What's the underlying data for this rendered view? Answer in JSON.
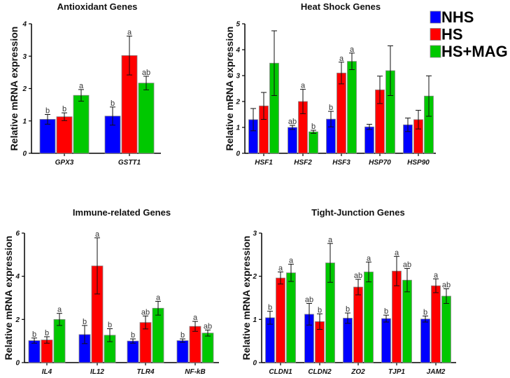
{
  "legend": [
    {
      "name": "NHS",
      "color": "#0000ff"
    },
    {
      "name": "HS",
      "color": "#ff0000"
    },
    {
      "name": "HS+MAG",
      "color": "#00c800"
    }
  ],
  "chart_data": [
    {
      "type": "bar",
      "title": "Antioxidant Genes",
      "ylabel": "Relative mRNA expression",
      "ylim": [
        0,
        4
      ],
      "yticks": [
        "0",
        "1",
        "2",
        "3",
        "4"
      ],
      "categories": [
        "GPX3",
        "GSTT1"
      ],
      "series": [
        {
          "name": "NHS",
          "values": [
            1.05,
            1.15
          ],
          "errors": [
            0.15,
            0.28
          ],
          "letters": [
            "b",
            "b"
          ]
        },
        {
          "name": "HS",
          "values": [
            1.13,
            3.02
          ],
          "errors": [
            0.12,
            0.6
          ],
          "letters": [
            "b",
            "a"
          ]
        },
        {
          "name": "HS+MAG",
          "values": [
            1.79,
            2.17
          ],
          "errors": [
            0.18,
            0.21
          ],
          "letters": [
            "a",
            "ab"
          ]
        }
      ]
    },
    {
      "type": "bar",
      "title": "Heat Shock Genes",
      "ylabel": "Relative mRNA expression",
      "ylim": [
        0,
        5
      ],
      "yticks": [
        "0",
        "1",
        "2",
        "3",
        "4",
        "5"
      ],
      "categories": [
        "HSF1",
        "HSF2",
        "HSF3",
        "HSP70",
        "HSP90"
      ],
      "series": [
        {
          "name": "NHS",
          "values": [
            1.3,
            1.0,
            1.32,
            1.02,
            1.1
          ],
          "errors": [
            0.43,
            0.08,
            0.3,
            0.1,
            0.26
          ],
          "letters": [
            "",
            "ab",
            "b",
            "",
            ""
          ]
        },
        {
          "name": "HS",
          "values": [
            1.83,
            2.0,
            3.1,
            2.45,
            1.3
          ],
          "errors": [
            0.52,
            0.47,
            0.42,
            0.53,
            0.36
          ],
          "letters": [
            "",
            "a",
            "a",
            "",
            ""
          ]
        },
        {
          "name": "HS+MAG",
          "values": [
            3.48,
            0.83,
            3.55,
            3.19,
            2.21
          ],
          "errors": [
            1.25,
            0.06,
            0.32,
            0.96,
            0.78
          ],
          "letters": [
            "",
            "b",
            "a",
            "",
            ""
          ]
        }
      ]
    },
    {
      "type": "bar",
      "title": "Immune-related Genes",
      "ylabel": "Relative mRNA expression",
      "ylim": [
        0,
        6
      ],
      "yticks": [
        "0",
        "2",
        "4",
        "6"
      ],
      "categories": [
        "IL4",
        "IL12",
        "TLR4",
        "NF-kB"
      ],
      "series": [
        {
          "name": "NHS",
          "values": [
            1.02,
            1.3,
            1.0,
            1.02
          ],
          "errors": [
            0.12,
            0.42,
            0.1,
            0.08
          ],
          "letters": [
            "b",
            "b",
            "b",
            "b"
          ]
        },
        {
          "name": "HS",
          "values": [
            1.05,
            4.48,
            1.86,
            1.68
          ],
          "errors": [
            0.15,
            1.3,
            0.3,
            0.23
          ],
          "letters": [
            "b",
            "a",
            "ab",
            "a"
          ]
        },
        {
          "name": "HS+MAG",
          "values": [
            2.0,
            1.27,
            2.52,
            1.37
          ],
          "errors": [
            0.28,
            0.3,
            0.32,
            0.14
          ],
          "letters": [
            "a",
            "b",
            "a",
            "ab"
          ]
        }
      ]
    },
    {
      "type": "bar",
      "title": "Tight-Junction Genes",
      "ylabel": "Relative mRNA expression",
      "ylim": [
        0,
        3
      ],
      "yticks": [
        "0",
        "1",
        "2",
        "3"
      ],
      "categories": [
        "CLDN1",
        "CLDN2",
        "ZO2",
        "TJP1",
        "JAM2"
      ],
      "series": [
        {
          "name": "NHS",
          "values": [
            1.04,
            1.12,
            1.03,
            1.02,
            1.01
          ],
          "errors": [
            0.15,
            0.25,
            0.12,
            0.08,
            0.07
          ],
          "letters": [
            "b",
            "ab",
            "b",
            "b",
            "b"
          ]
        },
        {
          "name": "HS",
          "values": [
            1.96,
            0.95,
            1.75,
            2.12,
            1.78
          ],
          "errors": [
            0.14,
            0.18,
            0.18,
            0.34,
            0.16
          ],
          "letters": [
            "a",
            "b",
            "ab",
            "a",
            "a"
          ]
        },
        {
          "name": "HS+MAG",
          "values": [
            2.08,
            2.31,
            2.1,
            1.91,
            1.54
          ],
          "errors": [
            0.2,
            0.45,
            0.23,
            0.27,
            0.17
          ],
          "letters": [
            "a",
            "a",
            "a",
            "ab",
            "ab"
          ]
        }
      ]
    }
  ]
}
